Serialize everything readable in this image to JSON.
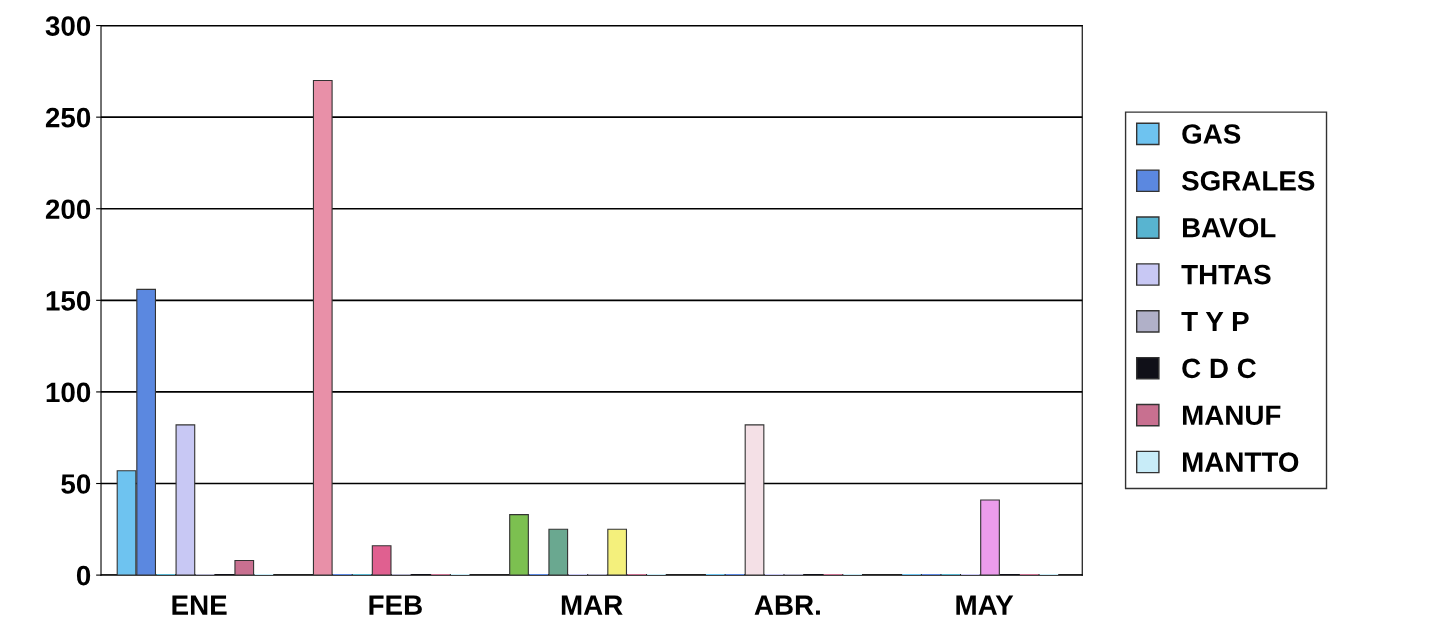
{
  "chart_data": {
    "type": "bar",
    "categories": [
      "ENE",
      "FEB",
      "MAR",
      "ABR.",
      "MAY"
    ],
    "series": [
      {
        "name": "GAS",
        "color": "#6ec3f0",
        "colors": [
          "#6ec3f0",
          "#e890a8",
          "#7cc050",
          "#6ec3f0",
          "#6ec3f0"
        ],
        "values": [
          57,
          270,
          33,
          0,
          0
        ]
      },
      {
        "name": "SGRALES",
        "color": "#5b88e0",
        "values": [
          156,
          0,
          0,
          0,
          0
        ]
      },
      {
        "name": "BAVOL",
        "color": "#58b4d0",
        "colors": [
          "#58b4d0",
          "#58b4d0",
          "#6aa890",
          "#f4e0e6",
          "#58b4d0"
        ],
        "values": [
          0,
          0,
          25,
          82,
          0
        ]
      },
      {
        "name": "THTAS",
        "color": "#c8c8f4",
        "colors": [
          "#c8c8f4",
          "#e06090",
          "#c8c8f4",
          "#c8c8f4",
          "#c8c8f4"
        ],
        "values": [
          82,
          16,
          0,
          0,
          0
        ]
      },
      {
        "name": "T Y P",
        "color": "#b0b0c8",
        "colors": [
          "#b0b0c8",
          "#b0b0c8",
          "#b0b0c8",
          "#b0b0c8",
          "#ec9cec"
        ],
        "values": [
          0,
          0,
          0,
          0,
          41
        ]
      },
      {
        "name": "C D C",
        "color": "#101018",
        "colors": [
          "#101018",
          "#101018",
          "#f4f07c",
          "#101018",
          "#101018"
        ],
        "values": [
          0,
          0,
          25,
          0,
          0
        ]
      },
      {
        "name": "MANUF",
        "color": "#c87090",
        "values": [
          8,
          0,
          0,
          0,
          0
        ]
      },
      {
        "name": "MANTTO",
        "color": "#c8ecf8",
        "values": [
          0,
          0,
          0,
          0,
          0
        ]
      }
    ],
    "ylim": [
      0,
      300
    ],
    "yticks": [
      0,
      50,
      100,
      150,
      200,
      250,
      300
    ],
    "grid": "y",
    "legend": "right"
  }
}
